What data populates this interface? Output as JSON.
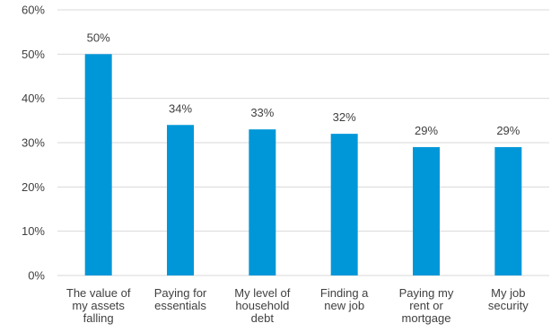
{
  "colors": {
    "bar": "#0097d8",
    "grid": "#d9d9d9",
    "text": "#404040"
  },
  "chart_data": {
    "type": "bar",
    "categories": [
      [
        "The value of",
        "my assets",
        "falling"
      ],
      [
        "Paying for",
        "essentials"
      ],
      [
        "My level of",
        "household",
        "debt"
      ],
      [
        "Finding a",
        "new job"
      ],
      [
        "Paying my",
        "rent or",
        "mortgage"
      ],
      [
        "My job",
        "security"
      ]
    ],
    "values": [
      50,
      34,
      33,
      32,
      29,
      29
    ],
    "data_labels": [
      "50%",
      "34%",
      "33%",
      "32%",
      "29%",
      "29%"
    ],
    "y_ticks": [
      "0%",
      "10%",
      "20%",
      "30%",
      "40%",
      "50%",
      "60%"
    ],
    "ylim": [
      0,
      60
    ],
    "grid": true,
    "legend": false
  }
}
